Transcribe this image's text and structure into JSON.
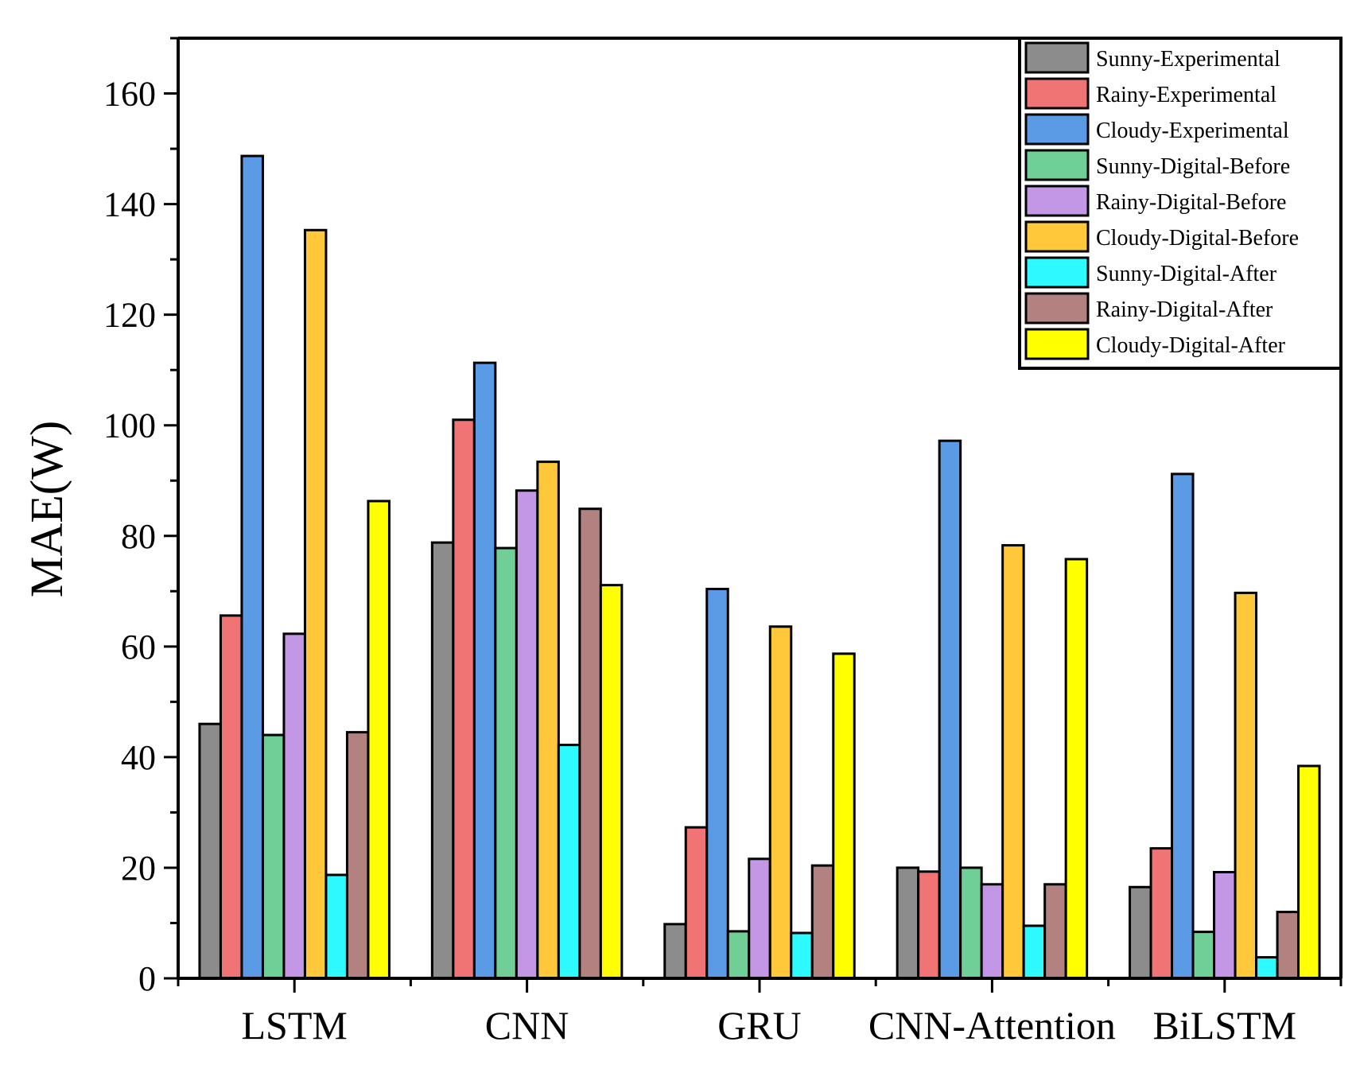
{
  "chart_data": {
    "type": "bar",
    "title": "",
    "xlabel": "",
    "ylabel": "MAE(W)",
    "ylim": [
      0,
      170
    ],
    "yticks": [
      0,
      20,
      40,
      60,
      80,
      100,
      120,
      140,
      160
    ],
    "ytick_labels": [
      "0",
      "20",
      "40",
      "60",
      "80",
      "100",
      "120",
      "140",
      "160"
    ],
    "categories": [
      "LSTM",
      "CNN",
      "GRU",
      "CNN-Attention",
      "BiLSTM"
    ],
    "legend_position": "top-right",
    "series": [
      {
        "name": "Sunny-Experimental",
        "color": "#8c8c8c",
        "values": [
          46,
          78.8,
          9.8,
          20,
          16.5
        ]
      },
      {
        "name": "Rainy-Experimental",
        "color": "#f07474",
        "values": [
          65.6,
          101,
          27.3,
          19.3,
          23.5
        ]
      },
      {
        "name": "Cloudy-Experimental",
        "color": "#5b9be6",
        "values": [
          148.7,
          111.3,
          70.4,
          97.2,
          91.2
        ]
      },
      {
        "name": "Sunny-Digital-Before",
        "color": "#6fcf97",
        "values": [
          44,
          77.8,
          8.5,
          20,
          8.4
        ]
      },
      {
        "name": "Rainy-Digital-Before",
        "color": "#c497e6",
        "values": [
          62.3,
          88.2,
          21.6,
          17,
          19.2
        ]
      },
      {
        "name": "Cloudy-Digital-Before",
        "color": "#ffc73a",
        "values": [
          135.3,
          93.4,
          63.6,
          78.3,
          69.7
        ]
      },
      {
        "name": "Sunny-Digital-After",
        "color": "#2ef9ff",
        "values": [
          18.7,
          42.2,
          8.2,
          9.5,
          3.8
        ]
      },
      {
        "name": "Rainy-Digital-After",
        "color": "#b48181",
        "values": [
          44.5,
          84.9,
          20.4,
          17,
          12
        ]
      },
      {
        "name": "Cloudy-Digital-After",
        "color": "#ffff00",
        "values": [
          86.3,
          71.1,
          58.7,
          75.8,
          38.4
        ]
      }
    ]
  }
}
